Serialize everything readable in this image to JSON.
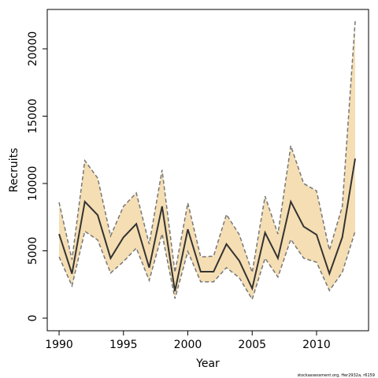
{
  "chart_data": {
    "type": "band-line",
    "xlabel": "Year",
    "ylabel": "Recruits",
    "footnote": "stockassessment.org, Her2932a, r6159",
    "x": [
      1990,
      1991,
      1992,
      1993,
      1994,
      1995,
      1996,
      1997,
      1998,
      1999,
      2000,
      2001,
      2002,
      2003,
      2004,
      2005,
      2006,
      2007,
      2008,
      2009,
      2010,
      2011,
      2012,
      2013
    ],
    "series": [
      {
        "color": "#333333",
        "values": [
          6250,
          3300,
          8650,
          7650,
          4450,
          6000,
          7000,
          3750,
          8300,
          2000,
          6600,
          3450,
          3450,
          5500,
          4250,
          2200,
          6350,
          4450,
          8650,
          6800,
          6200,
          3300,
          6000,
          11850
        ]
      },
      {
        "color": "#777777",
        "values": [
          8600,
          4350,
          11700,
          10400,
          6100,
          8300,
          9300,
          5500,
          11000,
          3400,
          8550,
          4550,
          4600,
          7700,
          6200,
          3400,
          9050,
          6250,
          12800,
          10000,
          9450,
          5050,
          8300,
          22050
        ]
      },
      {
        "color": "#777777",
        "values": [
          4550,
          2400,
          6450,
          5800,
          3350,
          4200,
          5200,
          2800,
          6250,
          1450,
          4950,
          2700,
          2700,
          3750,
          3000,
          1400,
          4450,
          3050,
          5850,
          4450,
          4150,
          2050,
          3400,
          6450
        ]
      }
    ],
    "band_color": "#f5deb3",
    "xlim": [
      1989.08,
      2014.04
    ],
    "xticks": [
      1990,
      1995,
      2000,
      2005,
      2010
    ],
    "ylim": [
      -936,
      22924
    ],
    "yticks": [
      0,
      5000,
      10000,
      15000,
      20000
    ]
  }
}
